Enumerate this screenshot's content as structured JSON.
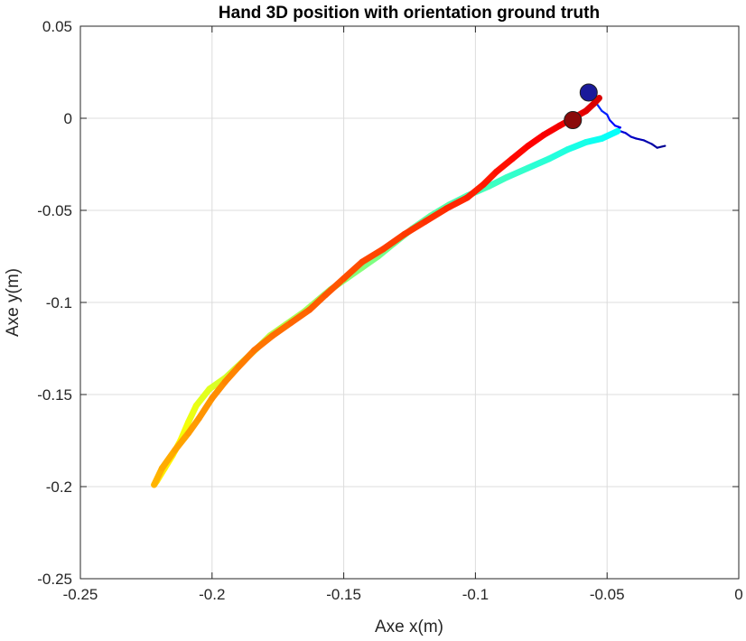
{
  "chart_data": {
    "type": "line",
    "title": "Hand 3D position with orientation ground truth",
    "xlabel": "Axe x(m)",
    "ylabel": "Axe y(m)",
    "xlim": [
      -0.25,
      0
    ],
    "ylim": [
      -0.25,
      0.05
    ],
    "xticks": [
      "-0.25",
      "-0.2",
      "-0.15",
      "-0.1",
      "-0.05",
      "0"
    ],
    "yticks": [
      "0.05",
      "0",
      "-0.05",
      "-0.1",
      "-0.15",
      "-0.2",
      "-0.25"
    ],
    "grid": true,
    "series": [
      {
        "role": "thin-start",
        "color_scale": "jet",
        "points": [
          [
            -0.028,
            -0.015
          ],
          [
            -0.031,
            -0.016
          ],
          [
            -0.033,
            -0.014
          ],
          [
            -0.036,
            -0.012
          ],
          [
            -0.039,
            -0.011
          ],
          [
            -0.041,
            -0.01
          ],
          [
            -0.043,
            -0.008
          ],
          [
            -0.045,
            -0.007
          ],
          [
            -0.047,
            -0.007
          ],
          [
            -0.045,
            -0.005
          ],
          [
            -0.047,
            -0.004
          ],
          [
            -0.049,
            -0.001
          ],
          [
            -0.05,
            0.002
          ],
          [
            -0.052,
            0.004
          ],
          [
            -0.054,
            0.008
          ],
          [
            -0.055,
            0.011
          ],
          [
            -0.057,
            0.013
          ]
        ]
      },
      {
        "role": "thick-path",
        "color_scale": "jet",
        "points": [
          [
            -0.046,
            -0.007
          ],
          [
            -0.052,
            -0.011
          ],
          [
            -0.058,
            -0.013
          ],
          [
            -0.065,
            -0.017
          ],
          [
            -0.072,
            -0.022
          ],
          [
            -0.08,
            -0.027
          ],
          [
            -0.088,
            -0.032
          ],
          [
            -0.095,
            -0.037
          ],
          [
            -0.103,
            -0.042
          ],
          [
            -0.11,
            -0.047
          ],
          [
            -0.117,
            -0.053
          ],
          [
            -0.124,
            -0.06
          ],
          [
            -0.131,
            -0.068
          ],
          [
            -0.137,
            -0.075
          ],
          [
            -0.143,
            -0.081
          ],
          [
            -0.149,
            -0.087
          ],
          [
            -0.155,
            -0.093
          ],
          [
            -0.16,
            -0.099
          ],
          [
            -0.165,
            -0.105
          ],
          [
            -0.172,
            -0.112
          ],
          [
            -0.178,
            -0.118
          ],
          [
            -0.183,
            -0.125
          ],
          [
            -0.189,
            -0.133
          ],
          [
            -0.195,
            -0.141
          ],
          [
            -0.201,
            -0.147
          ],
          [
            -0.206,
            -0.156
          ],
          [
            -0.209,
            -0.165
          ],
          [
            -0.212,
            -0.175
          ],
          [
            -0.215,
            -0.183
          ],
          [
            -0.218,
            -0.19
          ],
          [
            -0.221,
            -0.197
          ],
          [
            -0.222,
            -0.199
          ],
          [
            -0.219,
            -0.19
          ],
          [
            -0.214,
            -0.18
          ],
          [
            -0.209,
            -0.171
          ],
          [
            -0.205,
            -0.163
          ],
          [
            -0.2,
            -0.152
          ],
          [
            -0.195,
            -0.143
          ],
          [
            -0.19,
            -0.135
          ],
          [
            -0.184,
            -0.126
          ],
          [
            -0.177,
            -0.118
          ],
          [
            -0.17,
            -0.111
          ],
          [
            -0.163,
            -0.104
          ],
          [
            -0.157,
            -0.096
          ],
          [
            -0.15,
            -0.087
          ],
          [
            -0.143,
            -0.078
          ],
          [
            -0.135,
            -0.071
          ],
          [
            -0.127,
            -0.063
          ],
          [
            -0.119,
            -0.056
          ],
          [
            -0.111,
            -0.049
          ],
          [
            -0.103,
            -0.043
          ],
          [
            -0.097,
            -0.036
          ],
          [
            -0.092,
            -0.029
          ],
          [
            -0.086,
            -0.022
          ],
          [
            -0.08,
            -0.015
          ],
          [
            -0.074,
            -0.009
          ],
          [
            -0.068,
            -0.004
          ],
          [
            -0.063,
            0.0
          ],
          [
            -0.058,
            0.004
          ],
          [
            -0.055,
            0.008
          ],
          [
            -0.053,
            0.011
          ]
        ]
      }
    ],
    "markers": [
      {
        "name": "start",
        "x": -0.057,
        "y": 0.014,
        "color": "#1a1a9a"
      },
      {
        "name": "end",
        "x": -0.063,
        "y": -0.001,
        "color": "#8b0a0a"
      }
    ]
  }
}
